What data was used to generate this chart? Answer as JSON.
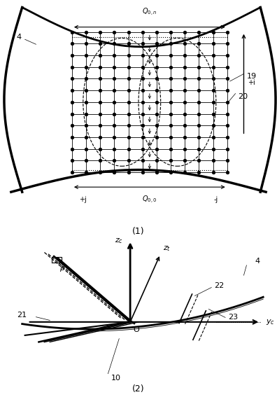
{
  "bg_color": "#ffffff",
  "fig_width": 3.96,
  "fig_height": 5.67,
  "dpi": 100,
  "d1": {
    "label": "(1)",
    "gx0": 0.26,
    "gx1": 0.82,
    "gy0": 0.3,
    "gy1": 0.87,
    "ncols": 12,
    "nrows": 13,
    "q0n": "Q_{0,n}",
    "q00": "Q_{0,0}",
    "pi": "+i",
    "pj": "+j",
    "mj": "-j",
    "lbl4": "4",
    "lbl19": "19",
    "lbl20": "20"
  },
  "d2": {
    "label": "(2)",
    "ox": 0.47,
    "oy": 0.45,
    "lbl_zc": "z_c",
    "lbl_zt": "z_t",
    "lbl_yc": "y_c",
    "lbl_beta": "β",
    "lbl_O": "O",
    "lbl21": "21",
    "lbl22": "22",
    "lbl23": "23",
    "lbl4": "4",
    "lbl10": "10"
  }
}
